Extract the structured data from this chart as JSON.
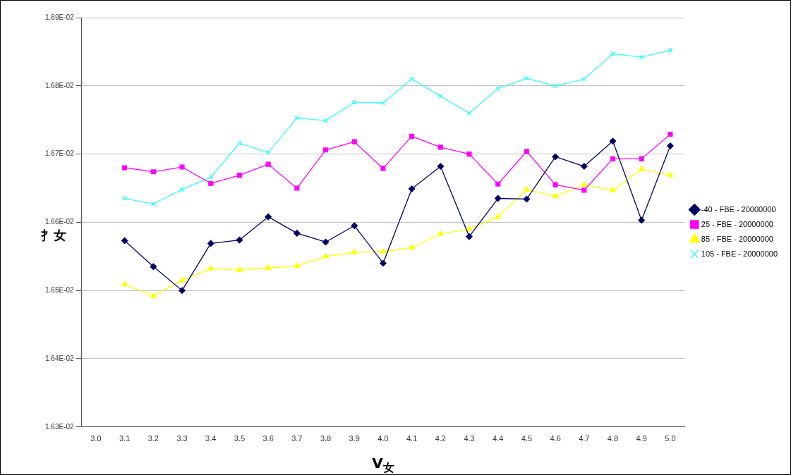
{
  "chart_data": {
    "type": "line",
    "xlabel": "V$_{女}$",
    "ylabel": "扌女",
    "categories": [
      "3.0",
      "3.1",
      "3.2",
      "3.3",
      "3.4",
      "3.5",
      "3.6",
      "3.7",
      "3.8",
      "3.9",
      "4.0",
      "4.1",
      "4.2",
      "4.3",
      "4.4",
      "4.5",
      "4.6",
      "4.7",
      "4.8",
      "4.9",
      "5.0"
    ],
    "ylim": [
      0.0163,
      0.0169
    ],
    "yticks": [
      {
        "value": 0.0163,
        "label": "1.63E-02"
      },
      {
        "value": 0.0164,
        "label": "1.64E-02"
      },
      {
        "value": 0.0165,
        "label": "1.65E-02"
      },
      {
        "value": 0.0166,
        "label": "1.66E-02"
      },
      {
        "value": 0.0167,
        "label": "1.67E-02"
      },
      {
        "value": 0.0168,
        "label": "1.68E-02"
      },
      {
        "value": 0.0169,
        "label": "1.69E-02"
      }
    ],
    "grid": "y",
    "legend": "right",
    "line_style": "solid",
    "series": [
      {
        "name": "-40 - FBE - 20000000",
        "color": "#000066",
        "marker": "diamond",
        "values": [
          null,
          0.016573,
          0.016535,
          0.0165,
          0.016569,
          0.016574,
          0.016608,
          0.016584,
          0.016571,
          0.016595,
          0.01654,
          0.016649,
          0.016682,
          0.016579,
          0.016635,
          0.016634,
          0.016696,
          0.016682,
          0.016719,
          0.016603,
          0.016712
        ]
      },
      {
        "name": "25 - FBE - 20000000",
        "color": "#ff00ff",
        "marker": "square",
        "values": [
          null,
          0.01668,
          0.016674,
          0.016681,
          0.016657,
          0.016669,
          0.016685,
          0.01665,
          0.016706,
          0.016718,
          0.016679,
          0.016726,
          0.01671,
          0.0167,
          0.016656,
          0.016704,
          0.016655,
          0.016647,
          0.016693,
          0.016693,
          0.016729
        ]
      },
      {
        "name": "85 - FBE - 20000000",
        "color": "#ffff00",
        "marker": "triangle",
        "values": [
          null,
          0.016509,
          0.016492,
          0.016515,
          0.016532,
          0.01653,
          0.016533,
          0.016536,
          0.01655,
          0.016556,
          0.016557,
          0.016563,
          0.016583,
          0.01659,
          0.016608,
          0.016648,
          0.016638,
          0.016655,
          0.016647,
          0.016678,
          0.016669
        ]
      },
      {
        "name": "105 - FBE - 20000000",
        "color": "#33ffff",
        "marker": "cross",
        "values": [
          null,
          0.016635,
          0.016627,
          0.016648,
          0.016666,
          0.016716,
          0.016702,
          0.016753,
          0.016749,
          0.016776,
          0.016775,
          0.01681,
          0.016785,
          0.01676,
          0.016796,
          0.016811,
          0.0168,
          0.01681,
          0.016847,
          0.016842,
          0.016852
        ]
      }
    ]
  }
}
